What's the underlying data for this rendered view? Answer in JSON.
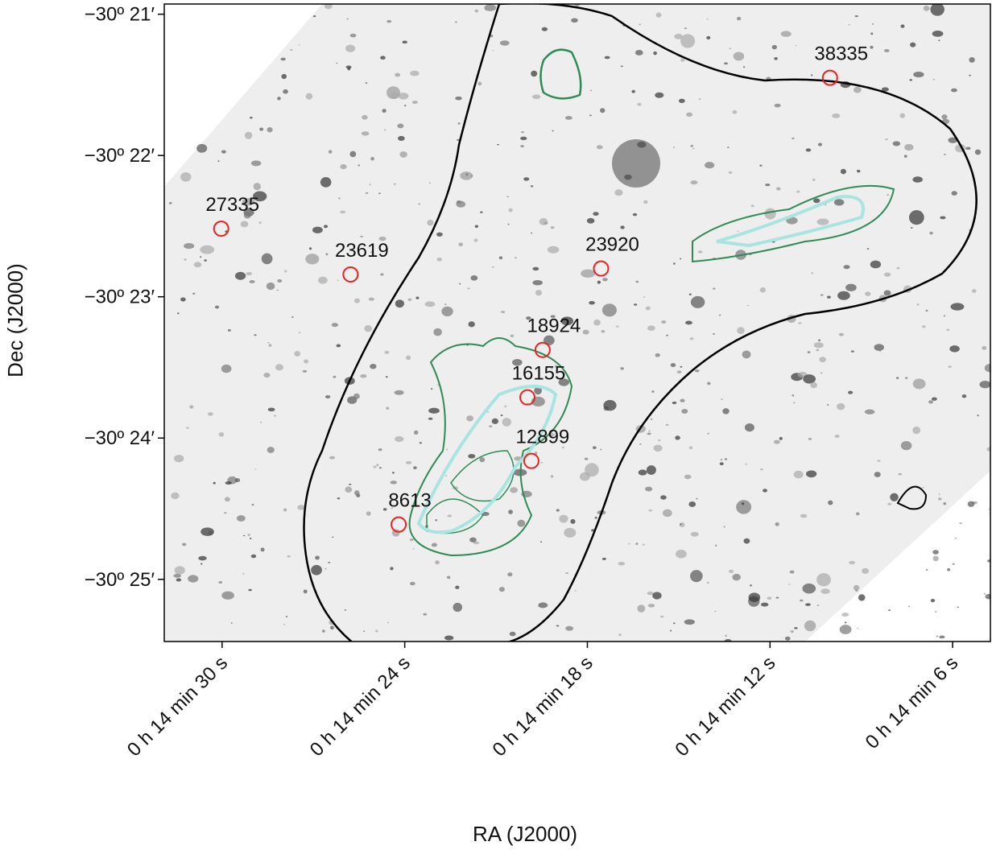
{
  "chart_data": {
    "type": "scatter",
    "xlabel": "RA (J2000)",
    "ylabel": "Dec (J2000)",
    "xlim": [
      31.9,
      4.76
    ],
    "ylim": [
      -30.424,
      -30.3488
    ],
    "xticks": [
      {
        "value": 30,
        "label": "0 h 14 min 30 s"
      },
      {
        "value": 24,
        "label": "0 h 14 min 24 s"
      },
      {
        "value": 18,
        "label": "0 h 14 min 18 s"
      },
      {
        "value": 12,
        "label": "0 h 14 min 12 s"
      },
      {
        "value": 6,
        "label": "0 h 14 min 6 s"
      }
    ],
    "yticks": [
      {
        "value": -30.35,
        "label": "−30º 21′"
      },
      {
        "value": -30.366667,
        "label": "−30º 22′"
      },
      {
        "value": -30.383333,
        "label": "−30º 23′"
      },
      {
        "value": -30.4,
        "label": "−30º 24′"
      },
      {
        "value": -30.416667,
        "label": "−30º 25′"
      }
    ],
    "series": [
      {
        "color": "#e8231f",
        "point_labels": [
          "27335",
          "23619",
          "23920",
          "38335",
          "18924",
          "16155",
          "12899",
          "8613"
        ],
        "x": [
          30.03,
          25.78,
          17.55,
          10.03,
          19.47,
          19.97,
          19.84,
          24.2
        ],
        "values": [
          -30.3753,
          -30.3807,
          -30.38,
          -30.3575,
          -30.3896,
          -30.3952,
          -30.4027,
          -30.4102
        ]
      }
    ]
  }
}
